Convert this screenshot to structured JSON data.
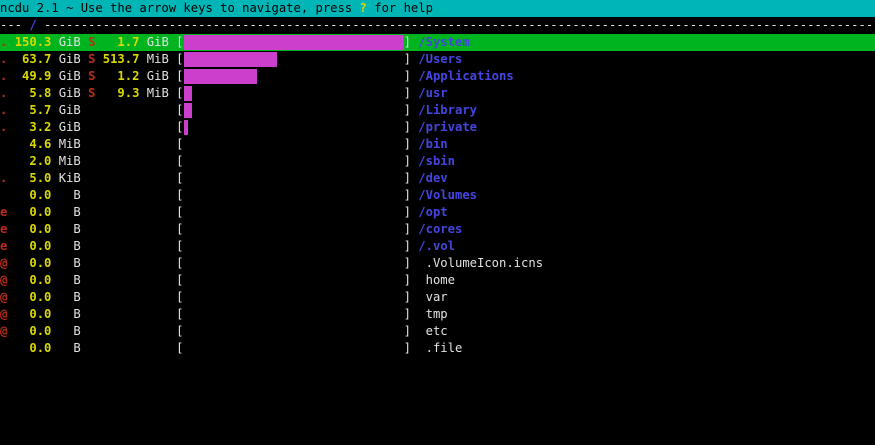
{
  "app": {
    "title_bar": {
      "text_before_key": "ncdu 2.1 ~ Use the arrow keys to navigate, press ",
      "help_key": "?",
      "text_after_key": " for help"
    }
  },
  "path_bar": {
    "prefix_dashes": "---",
    "path": "/"
  },
  "colors": {
    "background": "#000000",
    "header_bg": "#00b5b5",
    "header_fg": "#000000",
    "help_key_yellow": "#d9d900",
    "dash_gray": "#e6e6e6",
    "selected_bg": "#00b41f",
    "bar_fill": "#cc3ecc",
    "dir_name": "#4545e0",
    "size_number": "#d9d900",
    "flag_red": "#bf2b1a",
    "text_white": "#e2e2e2"
  },
  "file_list": {
    "bar_open": "[",
    "bar_close": "]",
    "rows": [
      {
        "flag": ".",
        "size": "150.3",
        "unit": "GiB",
        "shared": true,
        "shared_size": "1.7",
        "shared_unit": "GiB",
        "bar_pct": 100,
        "name": "/System",
        "is_dir": true,
        "selected": true
      },
      {
        "flag": ".",
        "size": "63.7",
        "unit": "GiB",
        "shared": true,
        "shared_size": "513.7",
        "shared_unit": "MiB",
        "bar_pct": 42.4,
        "name": "/Users",
        "is_dir": true,
        "selected": false
      },
      {
        "flag": ".",
        "size": "49.9",
        "unit": "GiB",
        "shared": true,
        "shared_size": "1.2",
        "shared_unit": "GiB",
        "bar_pct": 33.2,
        "name": "/Applications",
        "is_dir": true,
        "selected": false
      },
      {
        "flag": ".",
        "size": "5.8",
        "unit": "GiB",
        "shared": true,
        "shared_size": "9.3",
        "shared_unit": "MiB",
        "bar_pct": 3.9,
        "name": "/usr",
        "is_dir": true,
        "selected": false
      },
      {
        "flag": ".",
        "size": "5.7",
        "unit": "GiB",
        "shared": false,
        "shared_size": "",
        "shared_unit": "",
        "bar_pct": 3.8,
        "name": "/Library",
        "is_dir": true,
        "selected": false
      },
      {
        "flag": ".",
        "size": "3.2",
        "unit": "GiB",
        "shared": false,
        "shared_size": "",
        "shared_unit": "",
        "bar_pct": 2.1,
        "name": "/private",
        "is_dir": true,
        "selected": false
      },
      {
        "flag": "",
        "size": "4.6",
        "unit": "MiB",
        "shared": false,
        "shared_size": "",
        "shared_unit": "",
        "bar_pct": 0,
        "name": "/bin",
        "is_dir": true,
        "selected": false
      },
      {
        "flag": "",
        "size": "2.0",
        "unit": "MiB",
        "shared": false,
        "shared_size": "",
        "shared_unit": "",
        "bar_pct": 0,
        "name": "/sbin",
        "is_dir": true,
        "selected": false
      },
      {
        "flag": ".",
        "size": "5.0",
        "unit": "KiB",
        "shared": false,
        "shared_size": "",
        "shared_unit": "",
        "bar_pct": 0,
        "name": "/dev",
        "is_dir": true,
        "selected": false
      },
      {
        "flag": "",
        "size": "0.0",
        "unit": "B",
        "shared": false,
        "shared_size": "",
        "shared_unit": "",
        "bar_pct": 0,
        "name": "/Volumes",
        "is_dir": true,
        "selected": false
      },
      {
        "flag": "e",
        "size": "0.0",
        "unit": "B",
        "shared": false,
        "shared_size": "",
        "shared_unit": "",
        "bar_pct": 0,
        "name": "/opt",
        "is_dir": true,
        "selected": false
      },
      {
        "flag": "e",
        "size": "0.0",
        "unit": "B",
        "shared": false,
        "shared_size": "",
        "shared_unit": "",
        "bar_pct": 0,
        "name": "/cores",
        "is_dir": true,
        "selected": false
      },
      {
        "flag": "e",
        "size": "0.0",
        "unit": "B",
        "shared": false,
        "shared_size": "",
        "shared_unit": "",
        "bar_pct": 0,
        "name": "/.vol",
        "is_dir": true,
        "selected": false
      },
      {
        "flag": "@",
        "size": "0.0",
        "unit": "B",
        "shared": false,
        "shared_size": "",
        "shared_unit": "",
        "bar_pct": 0,
        "name": ".VolumeIcon.icns",
        "is_dir": false,
        "selected": false
      },
      {
        "flag": "@",
        "size": "0.0",
        "unit": "B",
        "shared": false,
        "shared_size": "",
        "shared_unit": "",
        "bar_pct": 0,
        "name": "home",
        "is_dir": false,
        "selected": false
      },
      {
        "flag": "@",
        "size": "0.0",
        "unit": "B",
        "shared": false,
        "shared_size": "",
        "shared_unit": "",
        "bar_pct": 0,
        "name": "var",
        "is_dir": false,
        "selected": false
      },
      {
        "flag": "@",
        "size": "0.0",
        "unit": "B",
        "shared": false,
        "shared_size": "",
        "shared_unit": "",
        "bar_pct": 0,
        "name": "tmp",
        "is_dir": false,
        "selected": false
      },
      {
        "flag": "@",
        "size": "0.0",
        "unit": "B",
        "shared": false,
        "shared_size": "",
        "shared_unit": "",
        "bar_pct": 0,
        "name": "etc",
        "is_dir": false,
        "selected": false
      },
      {
        "flag": "",
        "size": "0.0",
        "unit": "B",
        "shared": false,
        "shared_size": "",
        "shared_unit": "",
        "bar_pct": 0,
        "name": ".file",
        "is_dir": false,
        "selected": false
      }
    ]
  }
}
